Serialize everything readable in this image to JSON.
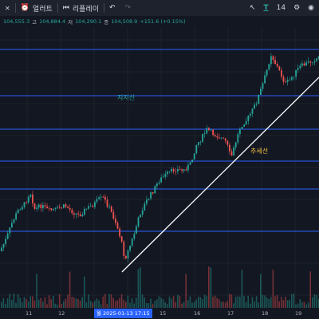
{
  "toolbar": {
    "alert_label": "얼러트",
    "replay_label": "리플레이",
    "page_num": "14"
  },
  "ohlc": {
    "price": "104,555.3",
    "h_key": "고",
    "h_val": "104,884.4",
    "l_key": "저",
    "l_val": "104,290.1",
    "c_key": "종",
    "c_val": "104,508.9",
    "change": "+151.6 (+0.15%)"
  },
  "annotations": {
    "support": "지지선",
    "trend": "추세선"
  },
  "xaxis": {
    "ticks": [
      "11",
      "12",
      "13",
      "15",
      "16",
      "17",
      "18",
      "19"
    ],
    "highlight": "월 2025-01-13   17:15"
  },
  "colors": {
    "up": "#26a69a",
    "down": "#ef5350",
    "hline": "#2962ff",
    "trend": "#ffffff",
    "support_text": "#26a69a",
    "trend_text": "#f5c242"
  }
}
